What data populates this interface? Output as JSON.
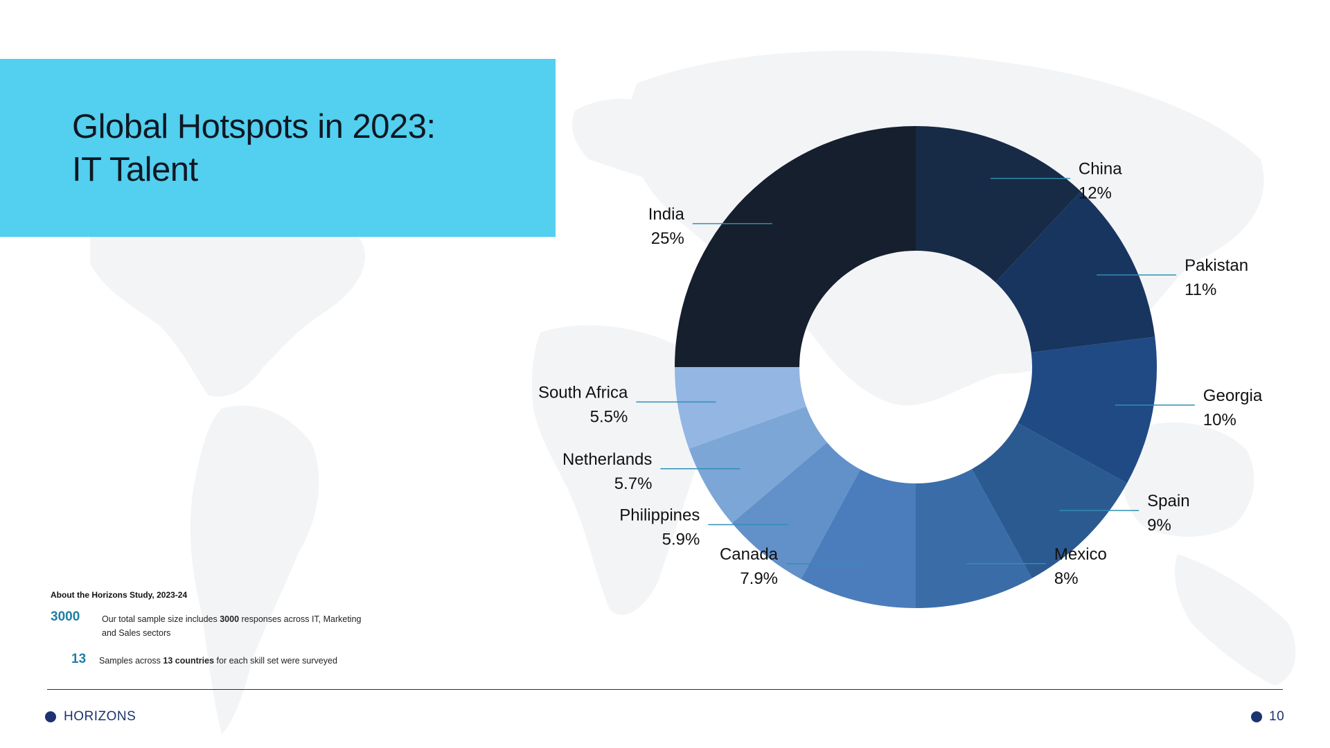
{
  "slide": {
    "title_line1": "Global Hotspots in 2023:",
    "title_line2": "IT Talent",
    "about_heading": "About the Horizons Study, 2023-24",
    "stats": [
      {
        "number": "3000",
        "text_before": "Our total sample size includes ",
        "bold": "3000",
        "text_after": " responses across IT, Marketing and Sales sectors"
      },
      {
        "number": "13",
        "text_before": "Samples across ",
        "bold": "13 countries",
        "text_after": " for each skill set were surveyed"
      }
    ],
    "footer_brand": "HORIZONS",
    "page_number": "10"
  },
  "colors": {
    "title_box": "#53cfef",
    "accent": "#1f7ea3",
    "brand_dot": "#1b3370",
    "map": "#f3f4f6"
  },
  "chart_data": {
    "type": "pie",
    "variant": "donut",
    "categories": [
      "China",
      "Pakistan",
      "Georgia",
      "Spain",
      "Mexico",
      "Canada",
      "Philippines",
      "Netherlands",
      "South Africa",
      "India"
    ],
    "values": [
      12,
      11,
      10,
      9,
      8,
      7.9,
      5.9,
      5.7,
      5.5,
      25
    ],
    "labels": [
      "12%",
      "11%",
      "10%",
      "9%",
      "8%",
      "7.9%",
      "5.9%",
      "5.7%",
      "5.5%",
      "25%"
    ],
    "colors": [
      "#172a46",
      "#18355f",
      "#1f4a84",
      "#2b5a91",
      "#3a6ca8",
      "#4b7dbc",
      "#6290c9",
      "#7ca6d6",
      "#93b6e3",
      "#151f2d"
    ],
    "legend": "none"
  }
}
